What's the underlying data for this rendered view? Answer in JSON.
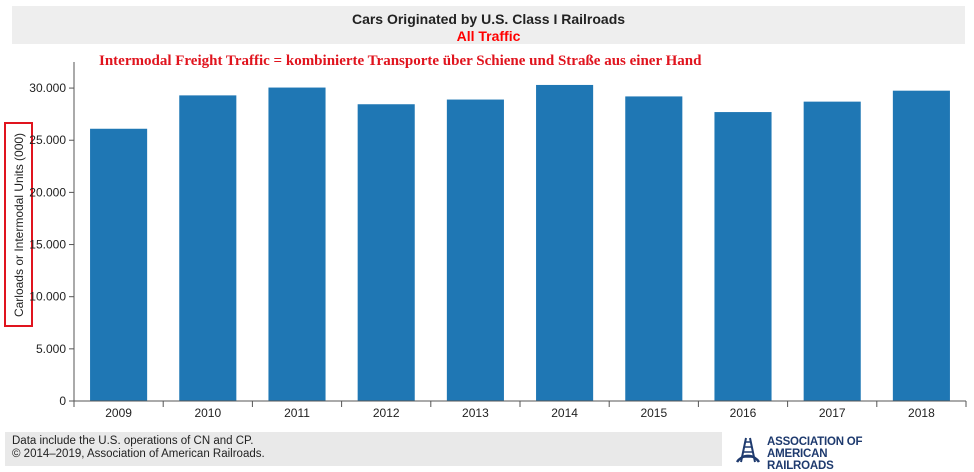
{
  "chart_data": {
    "type": "bar",
    "title": "Cars Originated by U.S. Class I Railroads",
    "subtitle": "All Traffic",
    "annotation": "Intermodal Freight Traffic = kombinierte Transporte über Schiene und Straße aus einer Hand",
    "xlabel": "",
    "ylabel": "Carloads or Intermodal Units (000)",
    "categories": [
      "2009",
      "2010",
      "2011",
      "2012",
      "2013",
      "2014",
      "2015",
      "2016",
      "2017",
      "2018"
    ],
    "values": [
      26100,
      29300,
      30050,
      28450,
      28900,
      30300,
      29200,
      27700,
      28700,
      29750
    ],
    "ylim": [
      0,
      32500
    ],
    "yticks": [
      0,
      5000,
      10000,
      15000,
      20000,
      25000,
      30000
    ],
    "ytick_labels": [
      "0",
      "5.000",
      "10.000",
      "15.000",
      "20.000",
      "25.000",
      "30.000"
    ],
    "bar_color": "#1f77b4",
    "grid": false
  },
  "footer": {
    "line1": "Data include the U.S. operations of CN and CP.",
    "line2": "© 2014–2019, Association of American Railroads."
  },
  "logo": {
    "line1": "ASSOCIATION OF",
    "line2": "AMERICAN RAILROADS",
    "icon": "railroad-track-icon",
    "color": "#1e3a6e"
  }
}
